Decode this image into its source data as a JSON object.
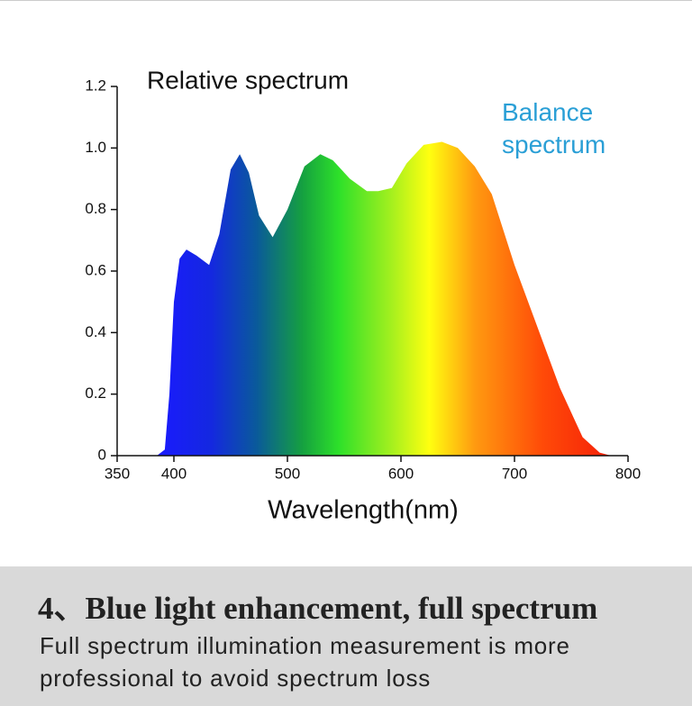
{
  "chart_data": {
    "type": "area",
    "title": "Relative spectrum",
    "x_label": "Wavelength(nm)",
    "x": [
      385,
      392,
      396,
      400,
      405,
      411,
      420,
      431,
      440,
      450,
      458,
      466,
      475,
      487,
      500,
      515,
      529,
      540,
      555,
      570,
      580,
      592,
      605,
      620,
      636,
      650,
      665,
      680,
      700,
      720,
      740,
      760,
      775,
      785
    ],
    "series": [
      {
        "name": "Balance spectrum",
        "values": [
          0,
          0.02,
          0.2,
          0.5,
          0.64,
          0.67,
          0.65,
          0.62,
          0.72,
          0.93,
          0.98,
          0.92,
          0.78,
          0.71,
          0.8,
          0.94,
          0.98,
          0.96,
          0.9,
          0.86,
          0.86,
          0.87,
          0.95,
          1.01,
          1.02,
          1.0,
          0.94,
          0.85,
          0.62,
          0.42,
          0.22,
          0.06,
          0.01,
          0
        ]
      }
    ],
    "xlim": [
      350,
      800
    ],
    "xticks": [
      350,
      400,
      500,
      600,
      700,
      800
    ],
    "ylim": [
      0,
      1.2
    ],
    "yticks": [
      0,
      0.2,
      0.4,
      0.6,
      0.8,
      {
        "value": 1.0,
        "label": "1.0"
      },
      1.2
    ]
  },
  "footer": {
    "heading": "4、Blue light enhancement, full spectrum",
    "description": "Full spectrum illumination measurement is more professional to avoid spectrum loss"
  }
}
